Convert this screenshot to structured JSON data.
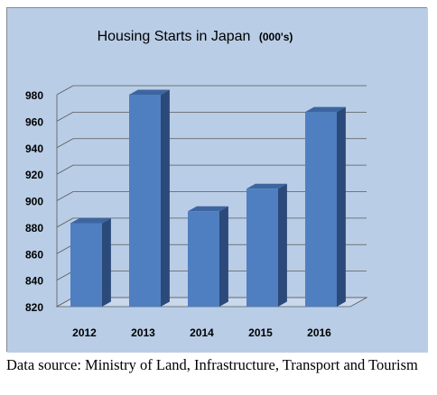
{
  "chart_data": {
    "type": "bar",
    "title": "Housing Starts in Japan",
    "title_unit": "(000's)",
    "categories": [
      "2012",
      "2013",
      "2014",
      "2015",
      "2016"
    ],
    "values": [
      883,
      980,
      892,
      909,
      967
    ],
    "ylim": [
      820,
      980
    ],
    "yticks": [
      "820",
      "840",
      "860",
      "880",
      "900",
      "920",
      "940",
      "960",
      "980"
    ],
    "xlabel": "",
    "ylabel": "",
    "grid": true,
    "legend": "none",
    "colors": {
      "background": "#b9cde6",
      "bar_front": "#4f7fc0",
      "bar_side": "#2b4a7a",
      "bar_top": "#3d65a0",
      "gridline": "#5a5a5a"
    }
  },
  "caption": "Data source: Ministry of Land, Infrastructure, Transport and Tourism"
}
